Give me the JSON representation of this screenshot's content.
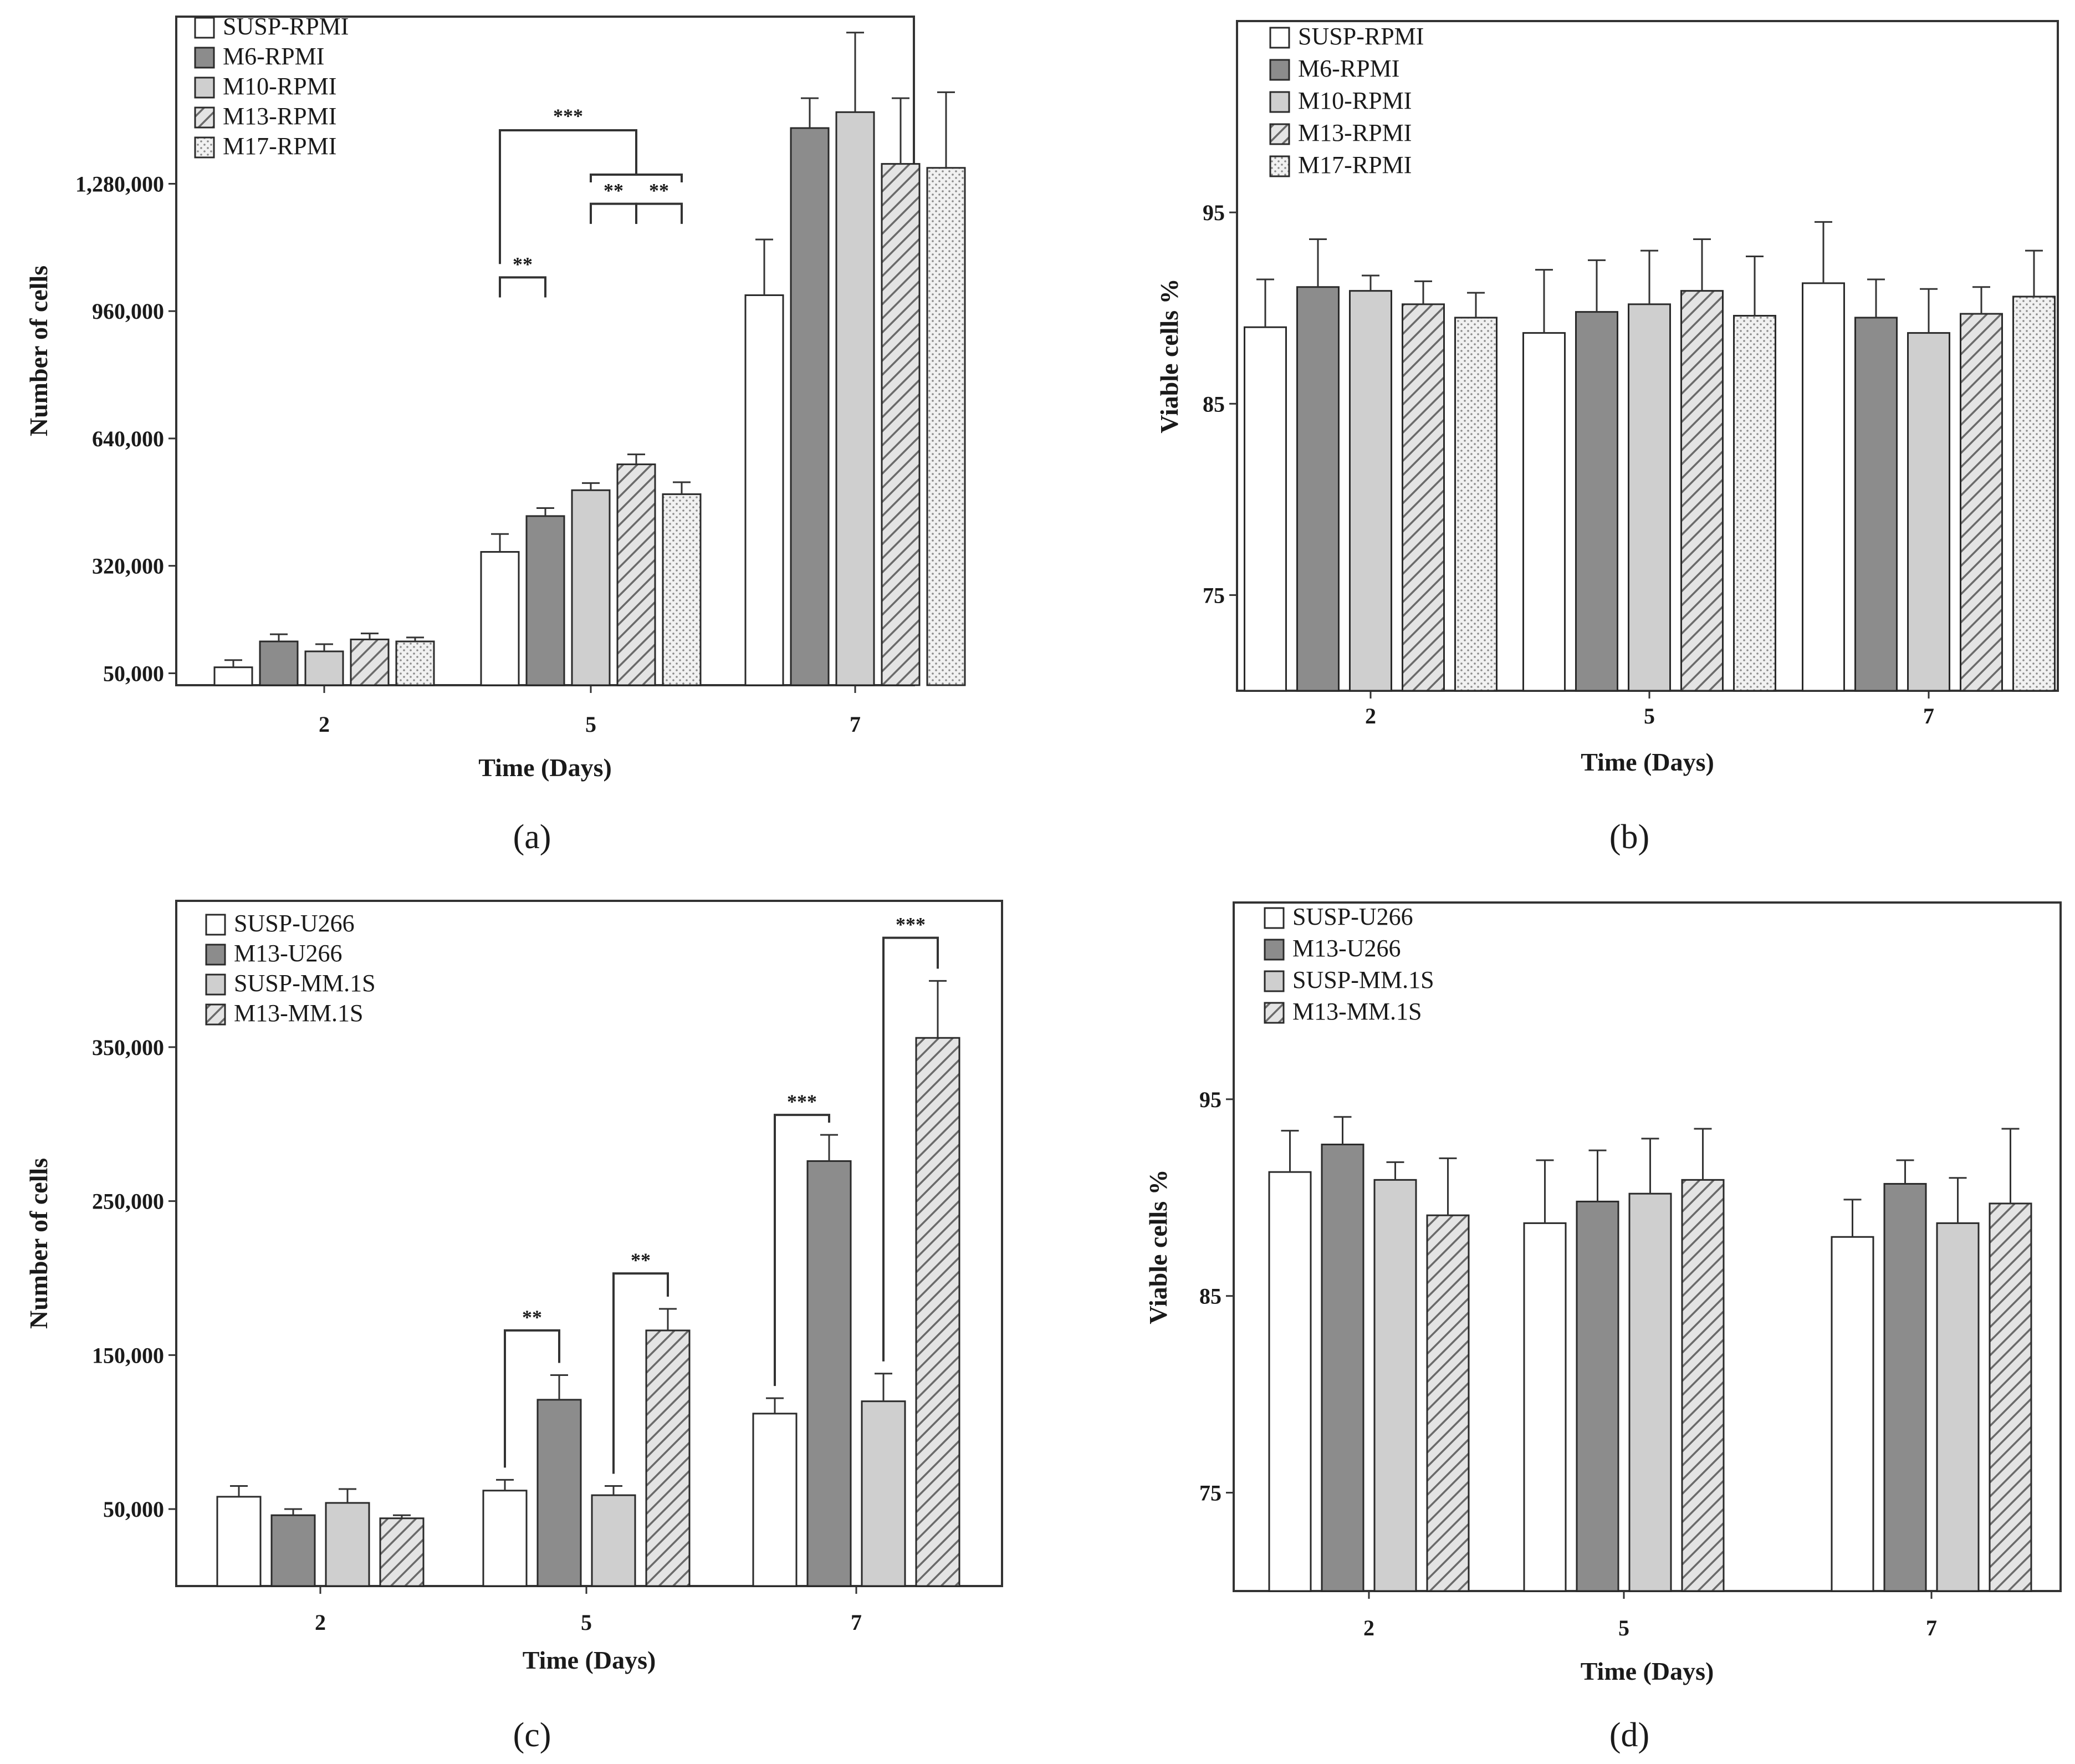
{
  "figure": {
    "captions": [
      "(a)",
      "(b)",
      "(c)",
      "(d)"
    ]
  },
  "colors": {
    "frame": "#333333",
    "white": "#ffffff",
    "dark": "#8c8c8c",
    "light": "#cfcfcf",
    "hatch_bg": "#e4e4e4",
    "hatch_line": "#6a6a6a",
    "dots_bg": "#f1f1f1",
    "dots_fg": "#8a8a8a"
  },
  "chart_data": [
    {
      "id": "a",
      "type": "bar",
      "caption": "(a)",
      "xlabel": "Time (Days)",
      "ylabel": "Number of cells",
      "categories": [
        "2",
        "5",
        "7"
      ],
      "yticks": [
        50000,
        320000,
        640000,
        960000,
        1280000
      ],
      "ytick_labels": [
        "50,000",
        "320,000",
        "640,000",
        "960,000",
        "1,280,000"
      ],
      "ylim": [
        20000,
        1700000
      ],
      "legend_position": "top-left",
      "series": [
        {
          "name": "SUSP-RPMI",
          "fill": "white",
          "values": [
            65000,
            355000,
            1000000
          ],
          "errors": [
            18000,
            45000,
            140000
          ]
        },
        {
          "name": "M6-RPMI",
          "fill": "dark",
          "values": [
            130000,
            445000,
            1420000
          ],
          "errors": [
            18000,
            20000,
            75000
          ]
        },
        {
          "name": "M10-RPMI",
          "fill": "light",
          "values": [
            105000,
            510000,
            1460000
          ],
          "errors": [
            18000,
            18000,
            200000
          ]
        },
        {
          "name": "M13-RPMI",
          "fill": "hatch",
          "values": [
            135000,
            575000,
            1330000
          ],
          "errors": [
            15000,
            25000,
            165000
          ]
        },
        {
          "name": "M17-RPMI",
          "fill": "dots",
          "values": [
            130000,
            500000,
            1320000
          ],
          "errors": [
            10000,
            30000,
            190000
          ]
        }
      ],
      "significance": [
        {
          "label": "**",
          "cat": 1,
          "from": 0,
          "to": 1,
          "base": 0.58,
          "y": 0.61
        },
        {
          "label": "**",
          "cat": 1,
          "from": 2,
          "to": 3,
          "base": 0.69,
          "y": 0.72
        },
        {
          "label": "**",
          "cat": 1,
          "from": 3,
          "to": 4,
          "base": 0.69,
          "y": 0.72
        },
        {
          "label": "***",
          "cat": 1,
          "from": 0,
          "to": 3,
          "base": 0.83,
          "y": 0.83,
          "drop_to": 0.63,
          "right_bracket": [
            2,
            4
          ]
        }
      ]
    },
    {
      "id": "b",
      "type": "bar",
      "caption": "(b)",
      "xlabel": "Time (Days)",
      "ylabel": "Viable cells %",
      "categories": [
        "2",
        "5",
        "7"
      ],
      "yticks": [
        75,
        85,
        95
      ],
      "ytick_labels": [
        "75",
        "85",
        "95"
      ],
      "ylim": [
        70,
        105
      ],
      "legend_position": "top-left",
      "series": [
        {
          "name": "SUSP-RPMI",
          "fill": "white",
          "values": [
            89.0,
            88.7,
            91.3
          ],
          "errors": [
            2.5,
            3.3,
            3.2
          ]
        },
        {
          "name": "M6-RPMI",
          "fill": "dark",
          "values": [
            91.1,
            89.8,
            89.5
          ],
          "errors": [
            2.5,
            2.7,
            2.0
          ]
        },
        {
          "name": "M10-RPMI",
          "fill": "light",
          "values": [
            90.9,
            90.2,
            88.7
          ],
          "errors": [
            0.8,
            2.8,
            2.3
          ]
        },
        {
          "name": "M13-RPMI",
          "fill": "hatch",
          "values": [
            90.2,
            90.9,
            89.7
          ],
          "errors": [
            1.2,
            2.7,
            1.4
          ]
        },
        {
          "name": "M17-RPMI",
          "fill": "dots",
          "values": [
            89.5,
            89.6,
            90.6
          ],
          "errors": [
            1.3,
            3.1,
            2.4
          ]
        }
      ]
    },
    {
      "id": "c",
      "type": "bar",
      "caption": "(c)",
      "xlabel": "Time (Days)",
      "ylabel": "Number of cells",
      "categories": [
        "2",
        "5",
        "7"
      ],
      "yticks": [
        50000,
        150000,
        250000,
        350000
      ],
      "ytick_labels": [
        "50,000",
        "150,000",
        "250,000",
        "350,000"
      ],
      "ylim": [
        0,
        445000
      ],
      "legend_position": "top-left",
      "series": [
        {
          "name": "SUSP-U266",
          "fill": "white",
          "values": [
            58000,
            62000,
            112000
          ],
          "errors": [
            7000,
            7000,
            10000
          ]
        },
        {
          "name": "M13-U266",
          "fill": "dark",
          "values": [
            46000,
            121000,
            276000
          ],
          "errors": [
            4000,
            16000,
            17000
          ]
        },
        {
          "name": "SUSP-MM.1S",
          "fill": "light",
          "values": [
            54000,
            59000,
            120000
          ],
          "errors": [
            9000,
            6000,
            18000
          ]
        },
        {
          "name": "M13-MM.1S",
          "fill": "hatch",
          "values": [
            44000,
            166000,
            356000
          ],
          "errors": [
            2000,
            14000,
            37000
          ]
        }
      ],
      "significance": [
        {
          "label": "**",
          "cat": 1,
          "from": 0,
          "to": 1,
          "top": 166000
        },
        {
          "label": "**",
          "cat": 1,
          "from": 2,
          "to": 3,
          "top": 203000
        },
        {
          "label": "***",
          "cat": 2,
          "from": 0,
          "to": 1,
          "top": 306000
        },
        {
          "label": "***",
          "cat": 2,
          "from": 2,
          "to": 3,
          "top": 421000
        }
      ]
    },
    {
      "id": "d",
      "type": "bar",
      "caption": "(d)",
      "xlabel": "Time (Days)",
      "ylabel": "Viable cells %",
      "categories": [
        "2",
        "5",
        "7"
      ],
      "yticks": [
        75,
        85,
        95
      ],
      "ytick_labels": [
        "75",
        "85",
        "95"
      ],
      "ylim": [
        70,
        105
      ],
      "legend_position": "top-left",
      "series": [
        {
          "name": "SUSP-U266",
          "fill": "white",
          "values": [
            91.3,
            88.7,
            88.0
          ],
          "errors": [
            2.1,
            3.2,
            1.9
          ]
        },
        {
          "name": "M13-U266",
          "fill": "dark",
          "values": [
            92.7,
            89.8,
            90.7
          ],
          "errors": [
            1.4,
            2.6,
            1.2
          ]
        },
        {
          "name": "SUSP-MM.1S",
          "fill": "light",
          "values": [
            90.9,
            90.2,
            88.7
          ],
          "errors": [
            0.9,
            2.8,
            2.3
          ]
        },
        {
          "name": "M13-MM.1S",
          "fill": "hatch",
          "values": [
            89.1,
            90.9,
            89.7
          ],
          "errors": [
            2.9,
            2.6,
            3.8
          ]
        }
      ]
    }
  ]
}
